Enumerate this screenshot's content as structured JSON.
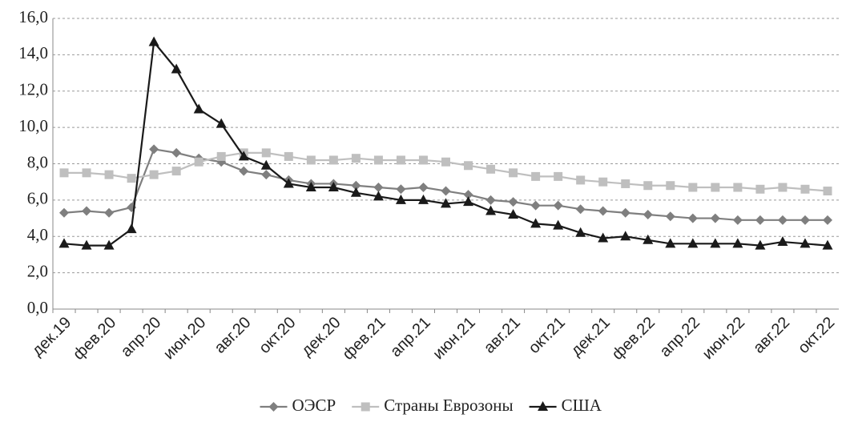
{
  "chart_data": {
    "type": "line",
    "categories": [
      "дек.19",
      null,
      "фев.20",
      null,
      "апр.20",
      null,
      "июн.20",
      null,
      "авг.20",
      null,
      "окт.20",
      null,
      "дек.20",
      null,
      "фев.21",
      null,
      "апр.21",
      null,
      "июн.21",
      null,
      "авг.21",
      null,
      "окт.21",
      null,
      "дек.21",
      null,
      "фев.22",
      null,
      "апр.22",
      null,
      "июн.22",
      null,
      "авг.22",
      null,
      "окт.22"
    ],
    "series": [
      {
        "name": "ОЭСР",
        "color": "#7f7f7f",
        "marker": "diamond",
        "values": [
          5.3,
          5.4,
          5.3,
          5.6,
          8.8,
          8.6,
          8.3,
          8.1,
          7.6,
          7.4,
          7.1,
          6.9,
          6.9,
          6.8,
          6.7,
          6.6,
          6.7,
          6.5,
          6.3,
          6.0,
          5.9,
          5.7,
          5.7,
          5.5,
          5.4,
          5.3,
          5.2,
          5.1,
          5.0,
          5.0,
          4.9,
          4.9,
          4.9,
          4.9,
          4.9
        ]
      },
      {
        "name": "Страны Еврозоны",
        "color": "#bfbfbf",
        "marker": "square",
        "values": [
          7.5,
          7.5,
          7.4,
          7.2,
          7.4,
          7.6,
          8.1,
          8.4,
          8.6,
          8.6,
          8.4,
          8.2,
          8.2,
          8.3,
          8.2,
          8.2,
          8.2,
          8.1,
          7.9,
          7.7,
          7.5,
          7.3,
          7.3,
          7.1,
          7.0,
          6.9,
          6.8,
          6.8,
          6.7,
          6.7,
          6.7,
          6.6,
          6.7,
          6.6,
          6.5
        ]
      },
      {
        "name": "США",
        "color": "#1a1a1a",
        "marker": "triangle",
        "values": [
          3.6,
          3.5,
          3.5,
          4.4,
          14.7,
          13.2,
          11.0,
          10.2,
          8.4,
          7.9,
          6.9,
          6.7,
          6.7,
          6.4,
          6.2,
          6.0,
          6.0,
          5.8,
          5.9,
          5.4,
          5.2,
          4.7,
          4.6,
          4.2,
          3.9,
          4.0,
          3.8,
          3.6,
          3.6,
          3.6,
          3.6,
          3.5,
          3.7,
          3.6,
          3.5
        ]
      }
    ],
    "ylim": [
      0,
      16
    ],
    "yticks": [
      {
        "value": 0,
        "label": "0,0"
      },
      {
        "value": 2,
        "label": "2,0"
      },
      {
        "value": 4,
        "label": "4,0"
      },
      {
        "value": 6,
        "label": "6,0"
      },
      {
        "value": 8,
        "label": "8,0"
      },
      {
        "value": 10,
        "label": "10,0"
      },
      {
        "value": 12,
        "label": "12,0"
      },
      {
        "value": 14,
        "label": "14,0"
      },
      {
        "value": 16,
        "label": "16,0"
      }
    ],
    "grid": true,
    "legend": "bottom"
  }
}
